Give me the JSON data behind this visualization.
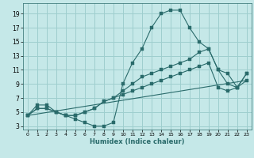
{
  "xlabel": "Humidex (Indice chaleur)",
  "xlim": [
    -0.5,
    23.5
  ],
  "ylim": [
    2.5,
    20.5
  ],
  "xticks": [
    0,
    1,
    2,
    3,
    4,
    5,
    6,
    7,
    8,
    9,
    10,
    11,
    12,
    13,
    14,
    15,
    16,
    17,
    18,
    19,
    20,
    21,
    22,
    23
  ],
  "yticks": [
    3,
    5,
    7,
    9,
    11,
    13,
    15,
    17,
    19
  ],
  "bg_color": "#c5e8e8",
  "grid_color": "#9ecece",
  "line_color": "#2a6b6b",
  "lines": [
    {
      "x": [
        0,
        1,
        2,
        3,
        4,
        5,
        6,
        7,
        8,
        9,
        10,
        11,
        12,
        13,
        14,
        15,
        16,
        17,
        18,
        19,
        20,
        21,
        22,
        23
      ],
      "y": [
        4.5,
        6,
        6,
        5,
        4.5,
        4,
        3.5,
        3,
        3,
        3.5,
        9,
        12,
        14,
        17,
        19,
        19.5,
        19.5,
        17,
        15,
        14,
        11,
        10.5,
        8.5,
        10.5
      ],
      "has_markers": true
    },
    {
      "x": [
        0,
        1,
        2,
        3,
        4,
        5,
        6,
        7,
        8,
        9,
        10,
        11,
        12,
        13,
        14,
        15,
        16,
        17,
        18,
        19,
        20,
        21,
        22,
        23
      ],
      "y": [
        4.5,
        5.5,
        5.5,
        5,
        4.5,
        4.5,
        5,
        5.5,
        6.5,
        7,
        8,
        9,
        10,
        10.5,
        11,
        11.5,
        12,
        12.5,
        13.5,
        14,
        11,
        9,
        8.5,
        10.5
      ],
      "has_markers": true
    },
    {
      "x": [
        0,
        1,
        2,
        3,
        4,
        5,
        6,
        7,
        8,
        9,
        10,
        11,
        12,
        13,
        14,
        15,
        16,
        17,
        18,
        19,
        20,
        21,
        22,
        23
      ],
      "y": [
        4.5,
        5.5,
        5.5,
        5,
        4.5,
        4.5,
        5,
        5.5,
        6.5,
        7,
        7.5,
        8,
        8.5,
        9,
        9.5,
        10,
        10.5,
        11,
        11.5,
        12,
        8.5,
        8,
        8.5,
        9.5
      ],
      "has_markers": true
    },
    {
      "x": [
        0,
        23
      ],
      "y": [
        4.5,
        9.5
      ],
      "has_markers": false
    }
  ]
}
